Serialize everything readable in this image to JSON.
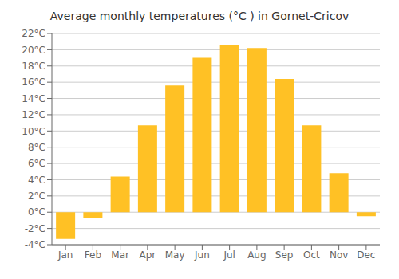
{
  "chart_data": {
    "type": "bar",
    "title": "Average monthly temperatures (°C ) in Gornet-Cricov",
    "categories": [
      "Jan",
      "Feb",
      "Mar",
      "Apr",
      "May",
      "Jun",
      "Jul",
      "Aug",
      "Sep",
      "Oct",
      "Nov",
      "Dec"
    ],
    "values": [
      -3.3,
      -0.7,
      4.4,
      10.7,
      15.6,
      19.0,
      20.6,
      20.2,
      16.4,
      10.7,
      4.8,
      -0.5
    ],
    "color": "#FFC125",
    "ylim": [
      -4,
      22
    ],
    "yticks": [
      {
        "value": -4,
        "label": "-4°C"
      },
      {
        "value": -2,
        "label": "-2°C"
      },
      {
        "value": 0,
        "label": "0°C"
      },
      {
        "value": 2,
        "label": "2°C"
      },
      {
        "value": 4,
        "label": "4°C"
      },
      {
        "value": 6,
        "label": "6°C"
      },
      {
        "value": 8,
        "label": "8°C"
      },
      {
        "value": 10,
        "label": "10°C"
      },
      {
        "value": 12,
        "label": "12°C"
      },
      {
        "value": 14,
        "label": "14°C"
      },
      {
        "value": 16,
        "label": "16°C"
      },
      {
        "value": 18,
        "label": "18°C"
      },
      {
        "value": 20,
        "label": "20°C"
      },
      {
        "value": 22,
        "label": "22°C"
      }
    ],
    "grid": true
  }
}
